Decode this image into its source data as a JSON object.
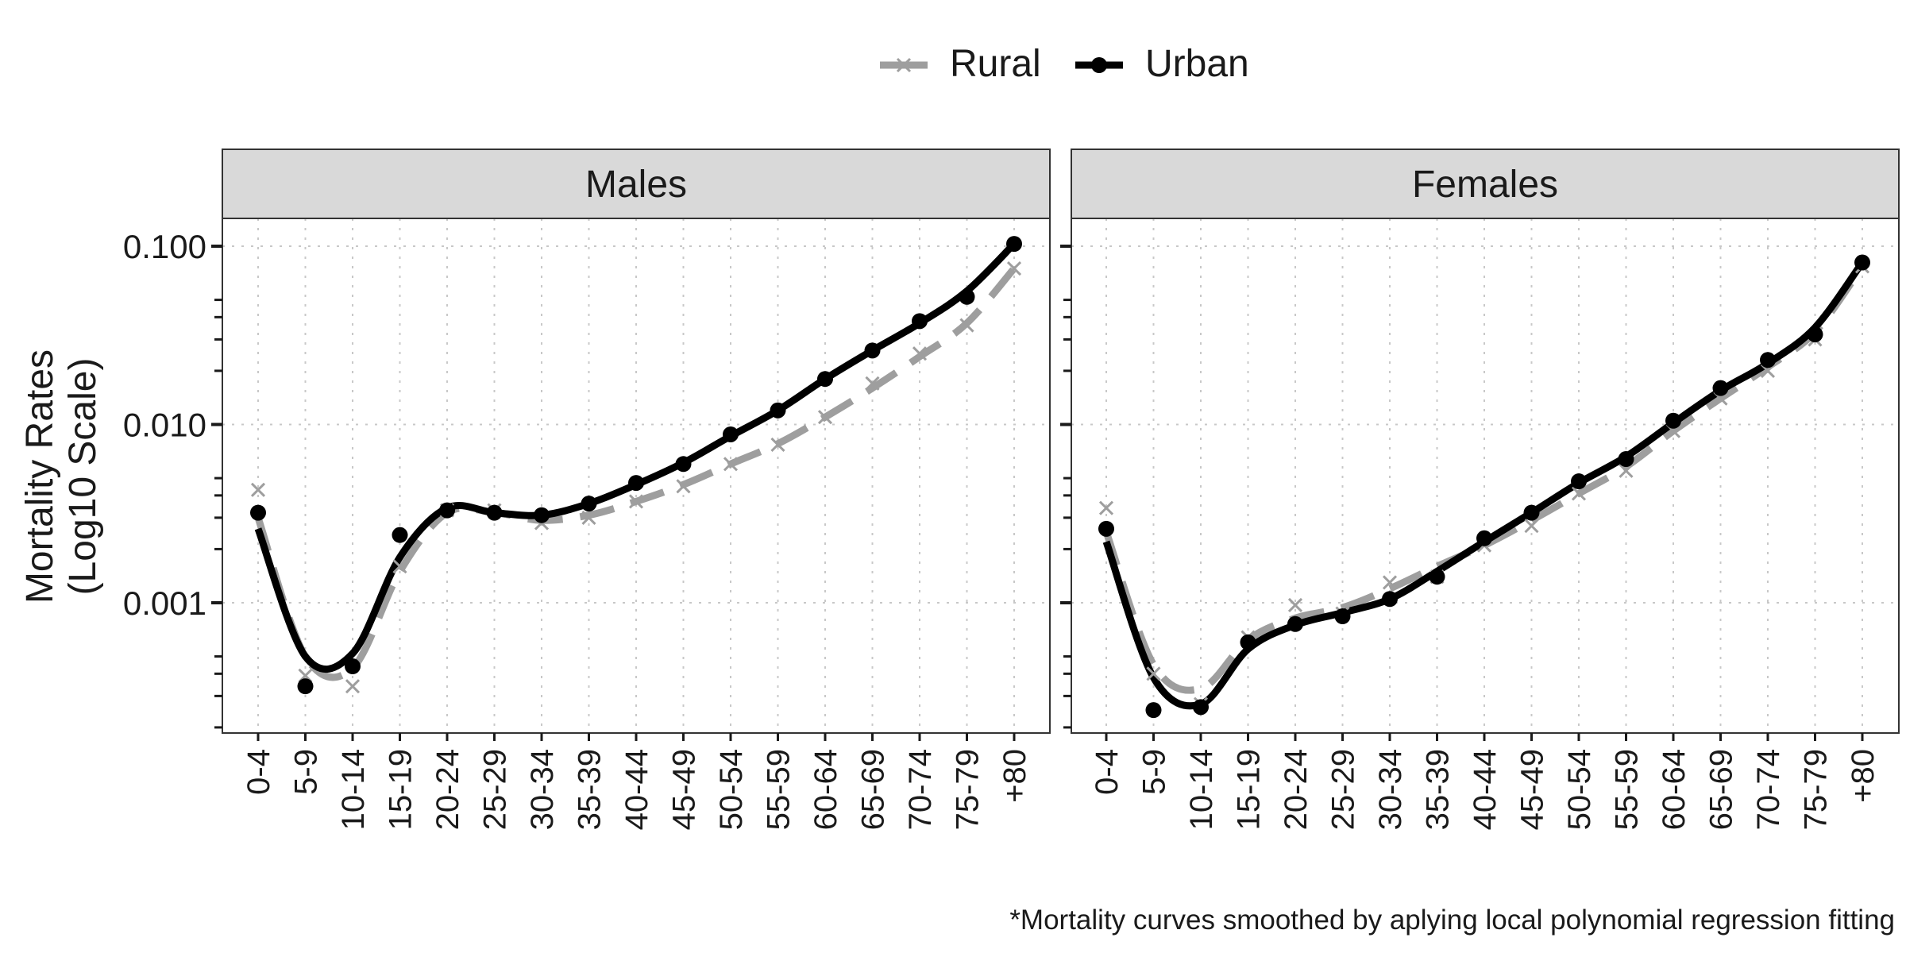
{
  "legend": {
    "items": [
      {
        "label": "Rural",
        "color": "#9e9e9e",
        "marker": "cross",
        "dash": true
      },
      {
        "label": "Urban",
        "color": "#000000",
        "marker": "dot",
        "dash": false
      }
    ]
  },
  "y_axis": {
    "title_line1": "Mortality Rates",
    "title_line2": "(Log10 Scale)",
    "ticks": [
      {
        "value": 0.001,
        "label": "0.001"
      },
      {
        "value": 0.01,
        "label": "0.010"
      },
      {
        "value": 0.1,
        "label": "0.100"
      }
    ]
  },
  "caption": "*Mortality curves smoothed by aplying local polynomial regression fitting",
  "chart_data": {
    "type": "line",
    "y_scale": "log10",
    "ylim": [
      0.00018,
      0.14
    ],
    "grid": true,
    "legend_position": "top",
    "categories": [
      "0-4",
      "5-9",
      "10-14",
      "15-19",
      "20-24",
      "25-29",
      "30-34",
      "35-39",
      "40-44",
      "45-49",
      "50-54",
      "55-59",
      "60-64",
      "65-69",
      "70-74",
      "75-79",
      "+80"
    ],
    "panels": [
      {
        "title": "Males",
        "series": [
          {
            "name": "Rural",
            "points": [
              0.0043,
              0.00039,
              0.00034,
              0.0016,
              0.0033,
              0.0033,
              0.0028,
              0.003,
              0.0037,
              0.0045,
              0.006,
              0.0077,
              0.011,
              0.017,
              0.025,
              0.036,
              0.075
            ],
            "smooth": [
              0.003,
              0.0005,
              0.00043,
              0.0015,
              0.0032,
              0.0032,
              0.0029,
              0.0031,
              0.0037,
              0.0046,
              0.006,
              0.0078,
              0.011,
              0.016,
              0.024,
              0.037,
              0.075
            ]
          },
          {
            "name": "Urban",
            "points": [
              0.0032,
              0.00034,
              0.00044,
              0.0024,
              0.0033,
              0.0032,
              0.0031,
              0.0036,
              0.0047,
              0.006,
              0.0088,
              0.012,
              0.018,
              0.026,
              0.038,
              0.052,
              0.103
            ],
            "smooth": [
              0.0026,
              0.0005,
              0.00052,
              0.0018,
              0.0034,
              0.0032,
              0.0031,
              0.0036,
              0.0046,
              0.0061,
              0.0086,
              0.012,
              0.018,
              0.026,
              0.037,
              0.056,
              0.103
            ]
          }
        ]
      },
      {
        "title": "Females",
        "series": [
          {
            "name": "Rural",
            "points": [
              0.0034,
              0.0004,
              0.00027,
              0.00064,
              0.00097,
              0.00087,
              0.0013,
              0.0014,
              0.0021,
              0.0027,
              0.0041,
              0.0055,
              0.0092,
              0.014,
              0.02,
              0.03,
              0.077
            ],
            "smooth": [
              0.0025,
              0.00045,
              0.00033,
              0.00062,
              0.00082,
              0.00094,
              0.0012,
              0.0016,
              0.0021,
              0.0029,
              0.0041,
              0.0058,
              0.0092,
              0.014,
              0.021,
              0.033,
              0.077
            ]
          },
          {
            "name": "Urban",
            "points": [
              0.0026,
              0.00025,
              0.00026,
              0.0006,
              0.00076,
              0.00084,
              0.00105,
              0.0014,
              0.0023,
              0.0032,
              0.0048,
              0.0064,
              0.0105,
              0.016,
              0.023,
              0.032,
              0.081
            ],
            "smooth": [
              0.0022,
              0.00038,
              0.00027,
              0.00055,
              0.00075,
              0.00088,
              0.00105,
              0.0015,
              0.0022,
              0.0032,
              0.0047,
              0.0066,
              0.0102,
              0.0155,
              0.022,
              0.035,
              0.081
            ]
          }
        ]
      }
    ]
  }
}
